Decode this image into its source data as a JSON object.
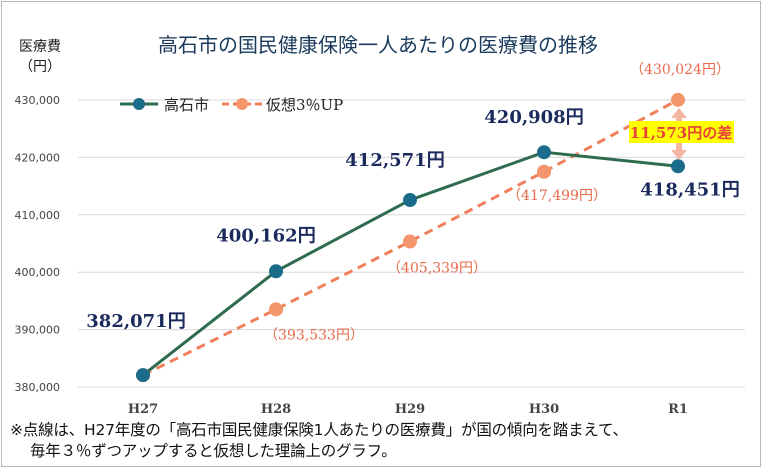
{
  "chart_data": {
    "type": "line",
    "title": "高石市の国民健康保険一人あたりの医療費の推移",
    "ylabel": [
      "医療費",
      "（円）"
    ],
    "categories": [
      "H27",
      "H28",
      "H29",
      "H30",
      "R1"
    ],
    "ylim": [
      380000,
      430000
    ],
    "yticks": [
      380000,
      390000,
      400000,
      410000,
      420000,
      430000
    ],
    "ytick_labels": [
      "380,000",
      "390,000",
      "400,000",
      "410,000",
      "420,000",
      "430,000"
    ],
    "legend_position": "top-left",
    "series": [
      {
        "name": "高石市",
        "values": [
          382071,
          400162,
          412571,
          420908,
          418451
        ],
        "labels": [
          "382,071円",
          "400,162円",
          "412,571円",
          "420,908円",
          "418,451円"
        ],
        "style": "solid",
        "color": "#2e6b4f",
        "marker_color": "#1b6b8a"
      },
      {
        "name": "仮想3％UP",
        "values": [
          382071,
          393533,
          405339,
          417499,
          430024
        ],
        "labels": [
          "",
          "（393,533円）",
          "（405,339円）",
          "（417,499円）",
          "（430,024円）"
        ],
        "style": "dashed",
        "color": "#f07f5c",
        "marker_color": "#f4956b"
      }
    ],
    "annotation": {
      "text": "11,573円の差",
      "highlight": "#ffff00",
      "text_color": "#e8433a"
    }
  },
  "note": {
    "line1": "※点線は、H27年度の「高石市国民健康保険1人あたりの医療費」が国の傾向を踏まえて、",
    "line2": "毎年３％ずつアップすると仮想した理論上のグラフ。"
  }
}
